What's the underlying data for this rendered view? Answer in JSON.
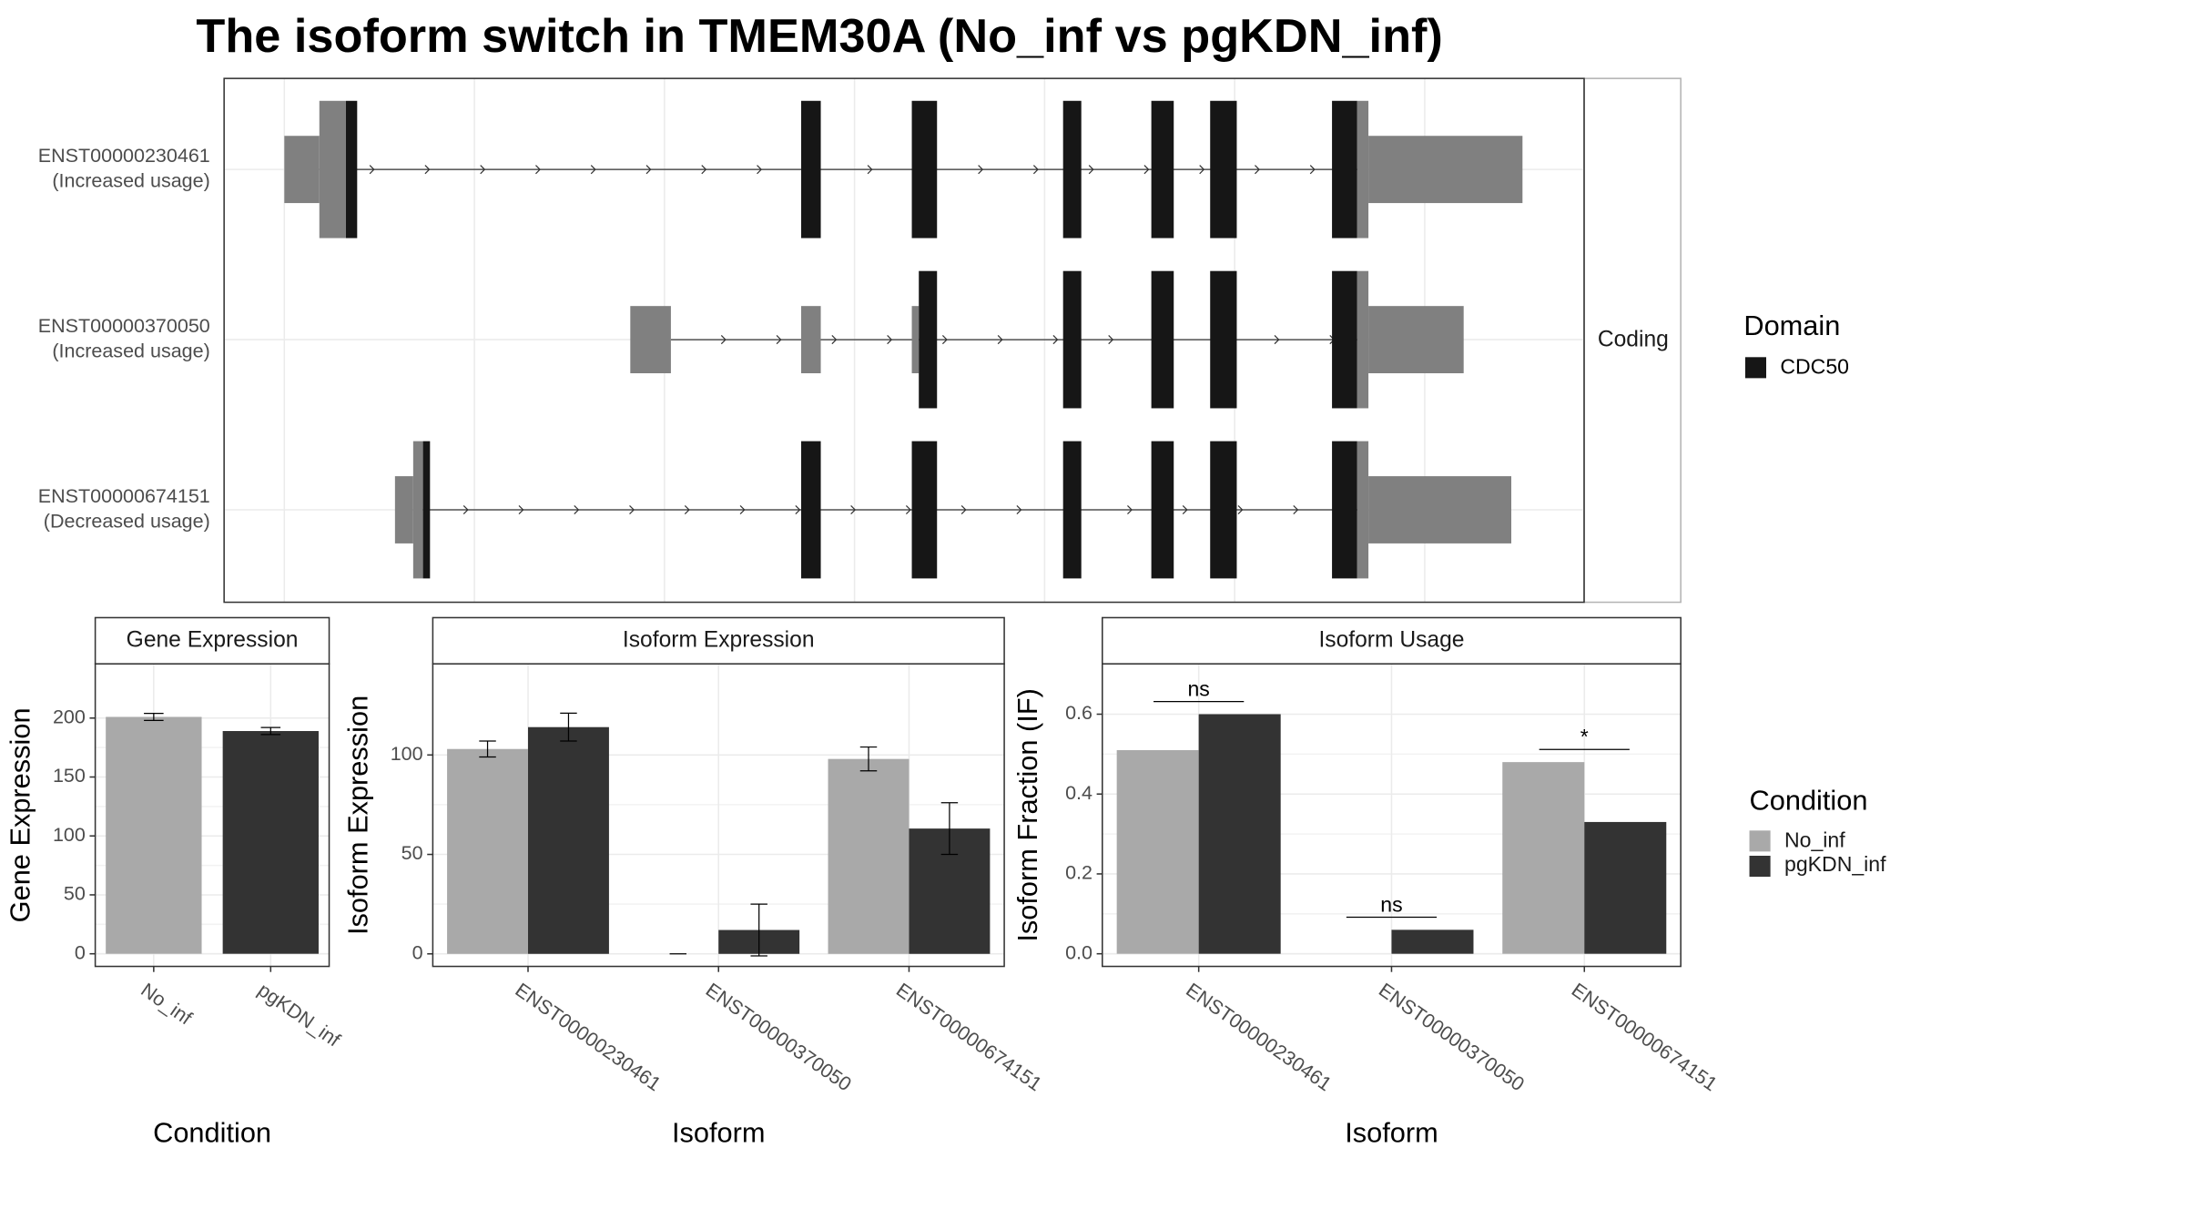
{
  "chart_data": [
    {
      "type": "transcripts",
      "title": "The isoform switch in TMEM30A (No_inf vs pgKDN_inf)",
      "xlim": [
        0,
        971
      ],
      "strip": "Coding",
      "legend_title": "Domain",
      "domain": "CDC50",
      "colors": {
        "utr": "#808080",
        "cds": "#808080",
        "domain": "#161616"
      },
      "transcripts": [
        {
          "name": "ENST00000230461",
          "usage": "(Increased usage)",
          "exons": [
            {
              "start": 43,
              "end": 68,
              "part": "utr"
            },
            {
              "start": 68,
              "end": 87,
              "part": "cds"
            },
            {
              "start": 87,
              "end": 95,
              "part": "domain"
            },
            {
              "start": 412,
              "end": 426,
              "part": "domain"
            },
            {
              "start": 491,
              "end": 509,
              "part": "domain"
            },
            {
              "start": 599,
              "end": 612,
              "part": "domain"
            },
            {
              "start": 662,
              "end": 678,
              "part": "domain"
            },
            {
              "start": 704,
              "end": 723,
              "part": "domain"
            },
            {
              "start": 791,
              "end": 809,
              "part": "domain"
            },
            {
              "start": 809,
              "end": 817,
              "part": "cds"
            },
            {
              "start": 817,
              "end": 927,
              "part": "utr"
            }
          ]
        },
        {
          "name": "ENST00000370050",
          "usage": "(Increased usage)",
          "exons": [
            {
              "start": 290,
              "end": 319,
              "part": "utr"
            },
            {
              "start": 412,
              "end": 426,
              "part": "utr"
            },
            {
              "start": 491,
              "end": 496,
              "part": "utr"
            },
            {
              "start": 496,
              "end": 509,
              "part": "domain"
            },
            {
              "start": 599,
              "end": 612,
              "part": "domain"
            },
            {
              "start": 662,
              "end": 678,
              "part": "domain"
            },
            {
              "start": 704,
              "end": 723,
              "part": "domain"
            },
            {
              "start": 791,
              "end": 809,
              "part": "domain"
            },
            {
              "start": 809,
              "end": 817,
              "part": "cds"
            },
            {
              "start": 817,
              "end": 885,
              "part": "utr"
            }
          ]
        },
        {
          "name": "ENST00000674151",
          "usage": "(Decreased usage)",
          "exons": [
            {
              "start": 122,
              "end": 135,
              "part": "utr"
            },
            {
              "start": 135,
              "end": 142,
              "part": "cds"
            },
            {
              "start": 142,
              "end": 147,
              "part": "domain"
            },
            {
              "start": 412,
              "end": 426,
              "part": "domain"
            },
            {
              "start": 491,
              "end": 509,
              "part": "domain"
            },
            {
              "start": 599,
              "end": 612,
              "part": "domain"
            },
            {
              "start": 662,
              "end": 678,
              "part": "domain"
            },
            {
              "start": 704,
              "end": 723,
              "part": "domain"
            },
            {
              "start": 791,
              "end": 809,
              "part": "domain"
            },
            {
              "start": 809,
              "end": 817,
              "part": "cds"
            },
            {
              "start": 817,
              "end": 919,
              "part": "utr"
            }
          ]
        }
      ]
    },
    {
      "type": "bar",
      "title": "Gene Expression",
      "xlabel": "Condition",
      "ylabel": "Gene Expression",
      "categories": [
        "No_inf",
        "pgKDN_inf"
      ],
      "values": [
        201,
        189
      ],
      "errors": [
        3,
        3
      ],
      "colors": [
        "#a9a9a9",
        "#333333"
      ],
      "ylim": [
        -10.7,
        246
      ],
      "yticks": [
        0,
        50,
        100,
        150,
        200
      ]
    },
    {
      "type": "grouped_bar",
      "title": "Isoform Expression",
      "xlabel": "Isoform",
      "ylabel": "Isoform Expression",
      "categories": [
        "ENST00000230461",
        "ENST00000370050",
        "ENST00000674151"
      ],
      "series": [
        {
          "name": "No_inf",
          "color": "#a9a9a9",
          "values": [
            103,
            0,
            98
          ],
          "errors": [
            4,
            0,
            6
          ]
        },
        {
          "name": "pgKDN_inf",
          "color": "#333333",
          "values": [
            114,
            12,
            63
          ],
          "errors": [
            7,
            13,
            13
          ]
        }
      ],
      "ylim": [
        -6.3,
        145.8
      ],
      "yticks": [
        0,
        50,
        100
      ]
    },
    {
      "type": "grouped_bar",
      "title": "Isoform Usage",
      "xlabel": "Isoform",
      "ylabel": "Isoform Fraction (IF)",
      "categories": [
        "ENST00000230461",
        "ENST00000370050",
        "ENST00000674151"
      ],
      "series": [
        {
          "name": "No_inf",
          "color": "#a9a9a9",
          "values": [
            0.51,
            0,
            0.48
          ]
        },
        {
          "name": "pgKDN_inf",
          "color": "#333333",
          "values": [
            0.6,
            0.06,
            0.33
          ]
        }
      ],
      "annotations": [
        "ns",
        "ns",
        "*"
      ],
      "ylim": [
        -0.0316,
        0.726
      ],
      "yticks": [
        {
          "value": 0,
          "label": "0.0"
        },
        0.2,
        0.4,
        0.6
      ],
      "legend_title": "Condition"
    }
  ]
}
